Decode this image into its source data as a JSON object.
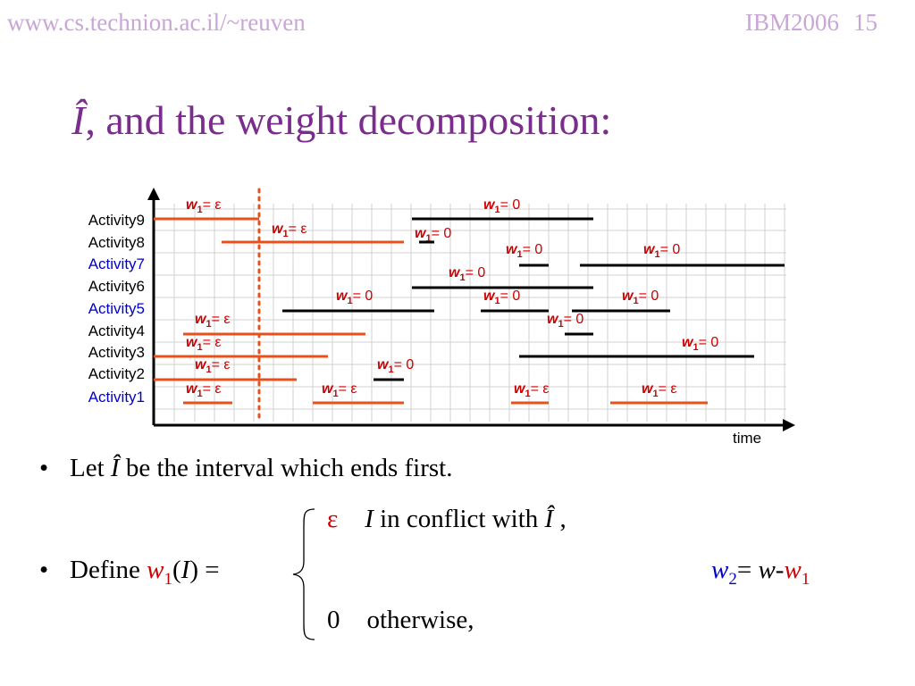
{
  "header": {
    "url": "www.cs.technion.ac.il/~reuven",
    "conference": "IBM2006",
    "slide_number": "15"
  },
  "title": {
    "symbol": "Î",
    "text": ", and the weight decomposition:"
  },
  "diagram": {
    "activities": [
      "Activity9",
      "Activity8",
      "Activity7",
      "Activity6",
      "Activity5",
      "Activity4",
      "Activity3",
      "Activity2",
      "Activity1"
    ],
    "activity_label_colors": [
      "#000000",
      "#000000",
      "#0000cc",
      "#000000",
      "#0000cc",
      "#000000",
      "#000000",
      "#000000",
      "#0000cc"
    ],
    "x_axis_label": "time",
    "interval_colors": {
      "red": "#e8501c",
      "black": "#000000",
      "label": "#cc0000"
    },
    "w_symbol": "w",
    "w_subscript": "1",
    "eq_epsilon": "= ε",
    "eq_zero": "= 0"
  },
  "bullets": {
    "b1_prefix": "Let ",
    "b1_symbol": "Î",
    "b1_suffix": " be the interval which ends first.",
    "b2_prefix": "Define ",
    "b2_w": "w",
    "b2_sub": "1",
    "b2_arg_open": "(",
    "b2_arg": "I",
    "b2_arg_close": ") =",
    "case1_value": "ε",
    "case1_var": "I",
    "case1_text": " in conflict with ",
    "case1_symbol": "Î",
    "case1_end": " ,",
    "case2_value": "0",
    "case2_text": "otherwise,",
    "w2_w": "w",
    "w2_sub": "2",
    "w2_eq": "= ",
    "w2_w_plain": "w",
    "w2_minus": "-",
    "w2_w1": "w",
    "w2_w1_sub": "1"
  }
}
